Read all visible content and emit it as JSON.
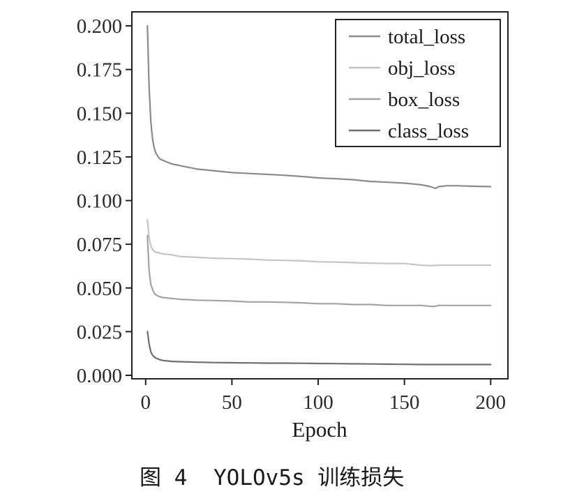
{
  "chart_data": {
    "type": "line",
    "xlabel": "Epoch",
    "ylabel": "",
    "xlim": [
      -8,
      210
    ],
    "ylim": [
      -0.002,
      0.208
    ],
    "xticks": [
      0,
      50,
      100,
      150,
      200
    ],
    "yticks": [
      0.0,
      0.025,
      0.05,
      0.075,
      0.1,
      0.125,
      0.15,
      0.175,
      0.2
    ],
    "ytick_labels": [
      "0.000",
      "0.025",
      "0.050",
      "0.075",
      "0.100",
      "0.125",
      "0.150",
      "0.175",
      "0.200"
    ],
    "xtick_labels": [
      "0",
      "50",
      "100",
      "150",
      "200"
    ],
    "legend_position": "top-right",
    "grid": false,
    "series": [
      {
        "name": "total_loss",
        "color": "#8a8a8a",
        "x": [
          1,
          2,
          3,
          4,
          5,
          6,
          8,
          10,
          15,
          20,
          30,
          40,
          50,
          60,
          70,
          80,
          90,
          100,
          110,
          120,
          130,
          140,
          150,
          155,
          160,
          165,
          168,
          170,
          175,
          180,
          190,
          200
        ],
        "y": [
          0.2,
          0.165,
          0.145,
          0.135,
          0.13,
          0.127,
          0.124,
          0.123,
          0.121,
          0.12,
          0.118,
          0.117,
          0.116,
          0.1155,
          0.115,
          0.1145,
          0.1138,
          0.113,
          0.1125,
          0.112,
          0.111,
          0.1105,
          0.11,
          0.1095,
          0.109,
          0.108,
          0.107,
          0.108,
          0.1085,
          0.1085,
          0.1082,
          0.108
        ]
      },
      {
        "name": "obj_loss",
        "color": "#c4c4c4",
        "x": [
          1,
          2,
          3,
          4,
          5,
          6,
          8,
          10,
          15,
          20,
          30,
          40,
          50,
          60,
          70,
          80,
          90,
          100,
          110,
          120,
          130,
          140,
          150,
          160,
          165,
          170,
          180,
          190,
          200
        ],
        "y": [
          0.089,
          0.079,
          0.074,
          0.072,
          0.071,
          0.0705,
          0.07,
          0.0695,
          0.069,
          0.068,
          0.0675,
          0.067,
          0.0668,
          0.0665,
          0.066,
          0.0658,
          0.0655,
          0.065,
          0.0648,
          0.0645,
          0.0642,
          0.064,
          0.064,
          0.063,
          0.0628,
          0.063,
          0.063,
          0.063,
          0.063
        ]
      },
      {
        "name": "box_loss",
        "color": "#a2a2a2",
        "x": [
          1,
          2,
          3,
          4,
          5,
          6,
          8,
          10,
          15,
          20,
          30,
          40,
          50,
          60,
          70,
          80,
          90,
          100,
          110,
          120,
          130,
          140,
          150,
          160,
          165,
          168,
          170,
          180,
          190,
          200
        ],
        "y": [
          0.08,
          0.06,
          0.052,
          0.049,
          0.047,
          0.046,
          0.045,
          0.0445,
          0.044,
          0.0435,
          0.043,
          0.0428,
          0.0425,
          0.042,
          0.042,
          0.0418,
          0.0415,
          0.041,
          0.041,
          0.0405,
          0.0405,
          0.04,
          0.04,
          0.04,
          0.0395,
          0.0395,
          0.04,
          0.04,
          0.04,
          0.04
        ]
      },
      {
        "name": "class_loss",
        "color": "#6e6e6e",
        "x": [
          1,
          2,
          3,
          4,
          5,
          6,
          8,
          10,
          15,
          20,
          30,
          40,
          50,
          60,
          70,
          80,
          90,
          100,
          110,
          120,
          130,
          140,
          150,
          160,
          170,
          180,
          190,
          200
        ],
        "y": [
          0.025,
          0.018,
          0.0135,
          0.0115,
          0.0105,
          0.0098,
          0.009,
          0.0085,
          0.008,
          0.0078,
          0.0075,
          0.0073,
          0.0072,
          0.0071,
          0.007,
          0.007,
          0.0069,
          0.0068,
          0.0067,
          0.0066,
          0.0065,
          0.0064,
          0.0063,
          0.0062,
          0.0062,
          0.0062,
          0.0062,
          0.0062
        ]
      }
    ]
  },
  "caption": {
    "prefix": "图 4",
    "title": "YOLOv5s 训练损失"
  }
}
